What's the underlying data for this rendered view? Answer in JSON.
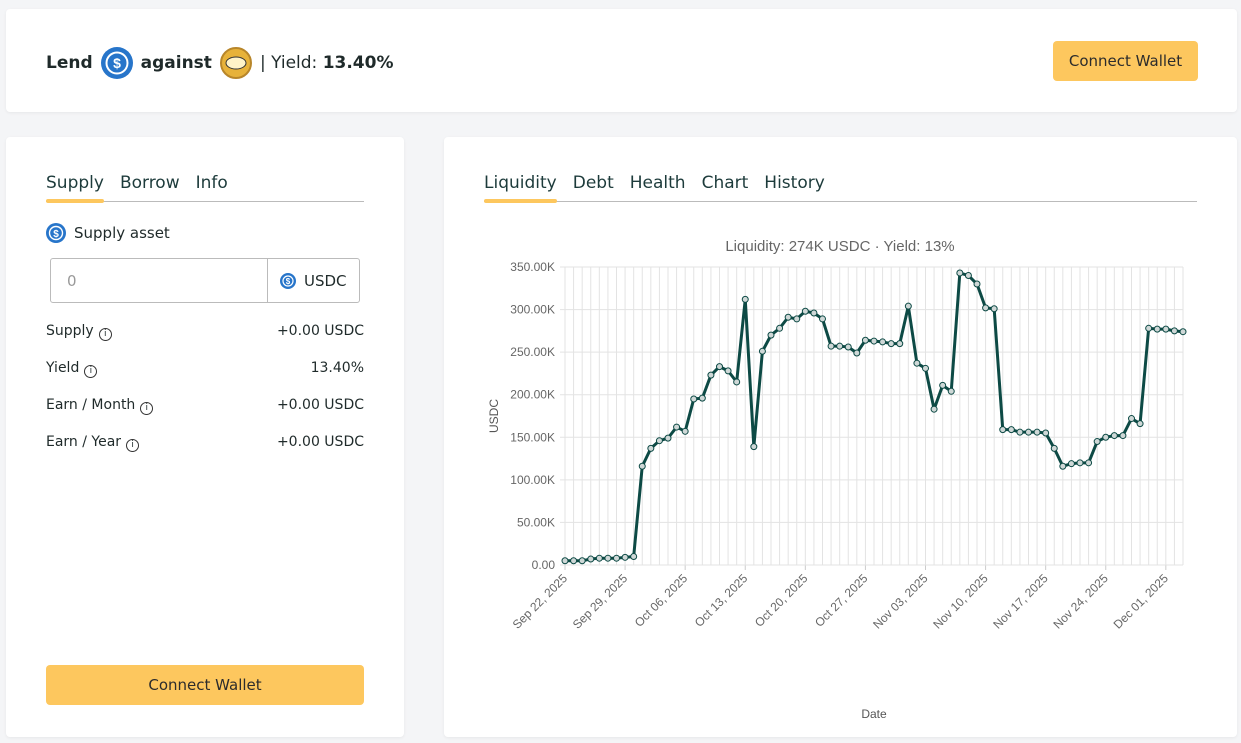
{
  "header": {
    "lend": "Lend",
    "against": "against",
    "yield_label": "| Yield:",
    "yield_value": "13.40%",
    "button": "Connect Wallet"
  },
  "left_panel": {
    "tabs": [
      "Supply",
      "Borrow",
      "Info"
    ],
    "supply_asset": "Supply asset",
    "input_placeholder": "0",
    "asset": "USDC",
    "rows": [
      {
        "label": "Supply",
        "value": "+0.00 USDC"
      },
      {
        "label": "Yield",
        "value": "13.40%"
      },
      {
        "label": "Earn / Month",
        "value": "+0.00 USDC"
      },
      {
        "label": "Earn / Year",
        "value": "+0.00 USDC"
      }
    ],
    "button": "Connect Wallet"
  },
  "right_panel": {
    "tabs": [
      "Liquidity",
      "Debt",
      "Health",
      "Chart",
      "History"
    ]
  },
  "chart_data": {
    "type": "line",
    "title": "Liquidity: 274K USDC · Yield: 13%",
    "x_label": "Date",
    "y_label": "USDC",
    "color": "#0d4a45",
    "grid": true,
    "categories": [
      "Sep 22, 2025",
      null,
      null,
      null,
      null,
      null,
      null,
      "Sep 29, 2025",
      null,
      null,
      null,
      null,
      null,
      null,
      "Oct 06, 2025",
      null,
      null,
      null,
      null,
      null,
      null,
      "Oct 13, 2025",
      null,
      null,
      null,
      null,
      null,
      null,
      "Oct 20, 2025",
      null,
      null,
      null,
      null,
      null,
      null,
      "Oct 27, 2025",
      null,
      null,
      null,
      null,
      null,
      null,
      "Nov 03, 2025",
      null,
      null,
      null,
      null,
      null,
      null,
      "Nov 10, 2025",
      null,
      null,
      null,
      null,
      null,
      null,
      "Nov 17, 2025",
      null,
      null,
      null,
      null,
      null,
      null,
      "Nov 24, 2025",
      null,
      null,
      null,
      null,
      null,
      null,
      "Dec 01, 2025",
      null,
      null
    ],
    "values": [
      5000,
      5000,
      5000,
      7000,
      8000,
      8000,
      8000,
      9000,
      10000,
      116000,
      137000,
      146000,
      149000,
      162000,
      157000,
      195000,
      196000,
      223000,
      233000,
      228000,
      215000,
      312000,
      139000,
      251000,
      270000,
      278000,
      291000,
      289000,
      298000,
      296000,
      289000,
      257000,
      257000,
      256000,
      249000,
      264000,
      263000,
      262000,
      260000,
      260000,
      304000,
      237000,
      231000,
      183000,
      211000,
      204000,
      343000,
      340000,
      330000,
      302000,
      301000,
      159000,
      159000,
      156000,
      156000,
      156000,
      155000,
      137000,
      116000,
      119000,
      120000,
      120000,
      145000,
      150000,
      152000,
      152000,
      172000,
      166000,
      278000,
      277000,
      277000,
      275000,
      274000
    ],
    "ylim": [
      0,
      350000
    ],
    "yticks": [
      {
        "value": 0,
        "label": "0.00"
      },
      {
        "value": 50000,
        "label": "50.00K"
      },
      {
        "value": 100000,
        "label": "100.00K"
      },
      {
        "value": 150000,
        "label": "150.00K"
      },
      {
        "value": 200000,
        "label": "200.00K"
      },
      {
        "value": 250000,
        "label": "250.00K"
      },
      {
        "value": 300000,
        "label": "300.00K"
      },
      {
        "value": 350000,
        "label": "350.00K"
      }
    ]
  }
}
